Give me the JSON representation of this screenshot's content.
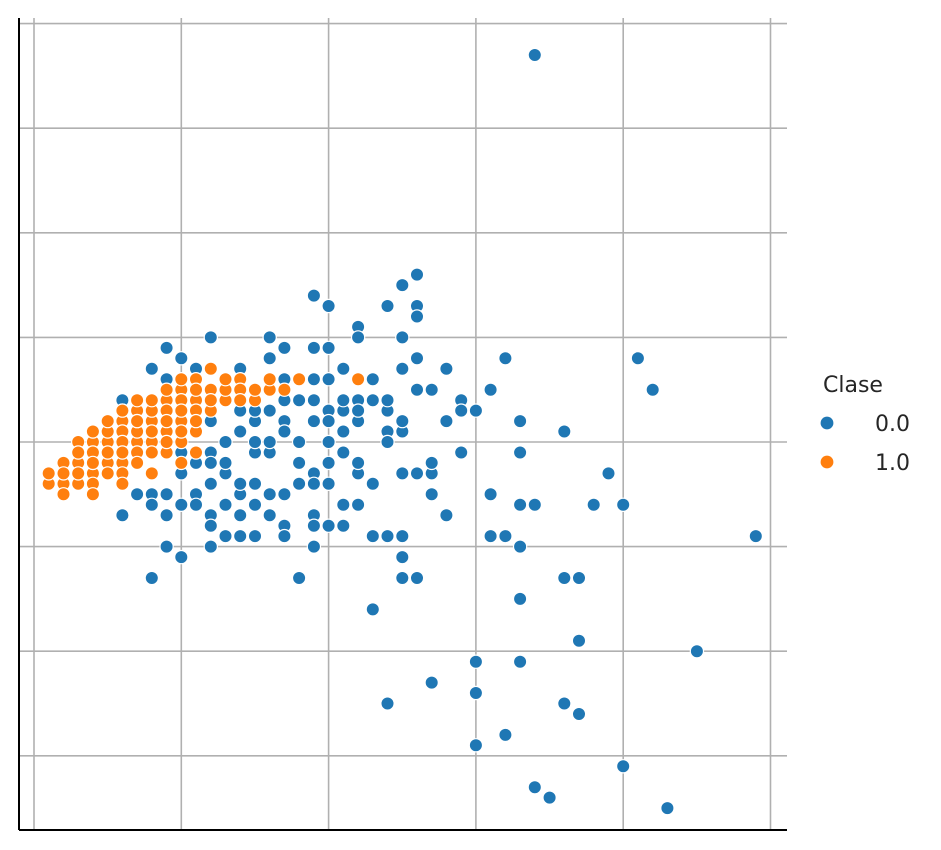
{
  "chart_data": {
    "type": "scatter",
    "title": "",
    "xlabel": "",
    "ylabel": "",
    "xlim": [
      -0.1,
      5.1
    ],
    "ylim": [
      -3.7,
      4.0
    ],
    "grid": true,
    "x_ticks": [
      0,
      1,
      2,
      3,
      4,
      5
    ],
    "y_ticks": [
      -3,
      -2,
      -1,
      0,
      1,
      2,
      3,
      4
    ],
    "legend": {
      "title": "Clase",
      "placement": "right"
    },
    "series": [
      {
        "name": "0.0",
        "color": "#1f77b4",
        "points": [
          [
            3.4,
            3.7
          ],
          [
            2.6,
            1.6
          ],
          [
            2.5,
            1.5
          ],
          [
            1.9,
            1.4
          ],
          [
            3.2,
            0.8
          ],
          [
            4.1,
            0.8
          ],
          [
            3.1,
            0.5
          ],
          [
            2.9,
            0.4
          ],
          [
            4.2,
            0.5
          ],
          [
            1.9,
            -0.3
          ],
          [
            2.4,
            0.1
          ],
          [
            2.8,
            -0.7
          ],
          [
            2.5,
            -1.1
          ],
          [
            2.5,
            -1.3
          ],
          [
            2.3,
            -0.4
          ],
          [
            2.2,
            -0.3
          ],
          [
            2.5,
            -0.9
          ],
          [
            2.6,
            -1.3
          ],
          [
            2.3,
            -1.6
          ],
          [
            2.7,
            -2.3
          ],
          [
            2.4,
            -2.5
          ],
          [
            3.2,
            -0.9
          ],
          [
            3.7,
            -1.9
          ],
          [
            3.5,
            -3.4
          ],
          [
            3.0,
            -2.1
          ],
          [
            4.9,
            -0.9
          ],
          [
            3.8,
            -0.6
          ],
          [
            3.4,
            -0.6
          ],
          [
            3.3,
            -1.0
          ],
          [
            3.3,
            -0.6
          ],
          [
            2.7,
            -0.3
          ],
          [
            2.6,
            -0.3
          ],
          [
            2.7,
            -0.5
          ],
          [
            2.2,
            -0.3
          ],
          [
            2.2,
            -0.6
          ],
          [
            1.8,
            -1.3
          ],
          [
            1.9,
            -0.7
          ],
          [
            2.0,
            -0.8
          ],
          [
            1.9,
            -1.0
          ],
          [
            1.9,
            -0.8
          ],
          [
            2.1,
            -0.6
          ],
          [
            1.6,
            -0.1
          ],
          [
            1.6,
            -0.5
          ],
          [
            1.6,
            -0.7
          ],
          [
            1.5,
            -0.9
          ],
          [
            1.4,
            -0.5
          ],
          [
            1.4,
            -0.7
          ],
          [
            1.5,
            -0.4
          ],
          [
            1.7,
            -0.8
          ],
          [
            1.2,
            -0.4
          ],
          [
            1.2,
            -0.7
          ],
          [
            1.3,
            -0.3
          ],
          [
            1.0,
            -0.3
          ],
          [
            1.0,
            -0.6
          ],
          [
            1.1,
            -0.5
          ],
          [
            0.9,
            -0.7
          ],
          [
            0.9,
            -0.5
          ],
          [
            0.9,
            -1.0
          ],
          [
            0.8,
            -0.5
          ],
          [
            0.8,
            -1.3
          ],
          [
            0.7,
            -0.5
          ],
          [
            0.6,
            -0.7
          ],
          [
            0.5,
            -0.3
          ],
          [
            0.4,
            -0.3
          ],
          [
            0.6,
            -0.2
          ],
          [
            1.0,
            -0.1
          ],
          [
            1.1,
            -0.2
          ],
          [
            1.2,
            -0.1
          ],
          [
            1.3,
            -0.2
          ],
          [
            1.5,
            -0.1
          ],
          [
            1.6,
            0.0
          ],
          [
            1.8,
            0.0
          ],
          [
            2.0,
            0.0
          ],
          [
            2.1,
            -0.1
          ],
          [
            2.2,
            0.2
          ],
          [
            2.4,
            0.3
          ],
          [
            2.5,
            0.1
          ],
          [
            2.6,
            0.5
          ],
          [
            2.8,
            0.7
          ],
          [
            3.0,
            0.3
          ],
          [
            1.9,
            0.4
          ],
          [
            2.0,
            0.3
          ],
          [
            2.1,
            0.3
          ],
          [
            1.4,
            0.4
          ],
          [
            1.5,
            0.2
          ],
          [
            1.2,
            0.2
          ],
          [
            1.3,
            0.6
          ],
          [
            1.0,
            0.4
          ],
          [
            0.9,
            0.6
          ],
          [
            0.8,
            0.3
          ],
          [
            0.7,
            0.1
          ],
          [
            0.6,
            0.4
          ],
          [
            1.7,
            0.4
          ],
          [
            1.7,
            0.2
          ],
          [
            1.8,
            0.4
          ],
          [
            1.9,
            0.6
          ],
          [
            2.0,
            0.6
          ],
          [
            2.2,
            0.4
          ],
          [
            2.3,
            0.4
          ],
          [
            2.4,
            0.4
          ],
          [
            2.1,
            0.1
          ],
          [
            2.0,
            -0.2
          ],
          [
            1.9,
            -0.4
          ],
          [
            1.8,
            -0.4
          ],
          [
            1.7,
            -0.5
          ],
          [
            1.5,
            -0.6
          ],
          [
            1.4,
            -0.9
          ],
          [
            1.2,
            -1.0
          ],
          [
            1.0,
            -1.1
          ],
          [
            1.3,
            -0.6
          ],
          [
            0.8,
            -0.6
          ],
          [
            1.0,
            0.1
          ],
          [
            1.1,
            0.1
          ],
          [
            1.5,
            0.3
          ],
          [
            1.3,
            0.0
          ],
          [
            1.4,
            0.1
          ],
          [
            2.0,
            0.2
          ],
          [
            2.2,
            0.3
          ],
          [
            1.7,
            0.1
          ],
          [
            1.6,
            0.3
          ],
          [
            2.1,
            0.4
          ],
          [
            1.9,
            0.2
          ],
          [
            2.3,
            0.6
          ],
          [
            2.6,
            1.3
          ],
          [
            3.3,
            -0.1
          ],
          [
            3.3,
            0.2
          ],
          [
            3.6,
            0.1
          ],
          [
            3.9,
            -0.3
          ],
          [
            4.0,
            -0.6
          ],
          [
            4.5,
            -2.0
          ],
          [
            4.3,
            -3.5
          ],
          [
            3.7,
            -1.3
          ],
          [
            2.7,
            -0.2
          ],
          [
            2.4,
            -0.9
          ],
          [
            2.1,
            -0.1
          ],
          [
            2.0,
            -0.4
          ],
          [
            2.3,
            -0.9
          ],
          [
            2.1,
            -0.8
          ],
          [
            1.7,
            -0.9
          ],
          [
            1.8,
            -0.2
          ],
          [
            2.2,
            -0.2
          ],
          [
            2.4,
            0.0
          ],
          [
            2.5,
            -0.3
          ],
          [
            2.5,
            0.2
          ],
          [
            2.8,
            0.2
          ],
          [
            2.9,
            -0.1
          ],
          [
            2.9,
            0.3
          ],
          [
            2.7,
            0.5
          ],
          [
            2.6,
            0.8
          ],
          [
            2.5,
            0.7
          ],
          [
            2.6,
            1.2
          ],
          [
            2.4,
            1.3
          ],
          [
            2.2,
            1.1
          ],
          [
            2.0,
            1.3
          ],
          [
            2.0,
            0.9
          ],
          [
            1.7,
            0.9
          ],
          [
            1.6,
            1.0
          ],
          [
            1.6,
            0.6
          ],
          [
            1.5,
            0.5
          ],
          [
            1.5,
            0.0
          ],
          [
            1.4,
            -0.4
          ],
          [
            1.2,
            -0.2
          ],
          [
            1.1,
            -0.6
          ],
          [
            1.2,
            -0.8
          ],
          [
            1.3,
            -0.9
          ],
          [
            1.1,
            0.7
          ],
          [
            1.0,
            0.3
          ],
          [
            0.9,
            0.3
          ],
          [
            1.0,
            0.8
          ],
          [
            1.0,
            0.5
          ],
          [
            1.1,
            0.2
          ],
          [
            1.2,
            0.5
          ],
          [
            1.3,
            0.5
          ],
          [
            1.4,
            0.3
          ],
          [
            1.4,
            0.7
          ],
          [
            1.6,
            0.8
          ],
          [
            1.2,
            1.0
          ],
          [
            0.9,
            0.9
          ],
          [
            0.8,
            0.7
          ],
          [
            0.6,
            0.3
          ],
          [
            1.7,
            0.6
          ],
          [
            1.9,
            0.9
          ],
          [
            2.2,
            1.0
          ],
          [
            2.5,
            1.0
          ],
          [
            2.1,
            0.7
          ],
          [
            3.1,
            -0.5
          ],
          [
            3.1,
            -0.9
          ],
          [
            3.6,
            -1.3
          ],
          [
            3.7,
            -1.3
          ],
          [
            3.3,
            -1.5
          ],
          [
            3.7,
            -2.6
          ],
          [
            3.2,
            -2.8
          ],
          [
            3.4,
            -3.3
          ],
          [
            3.0,
            -2.4
          ],
          [
            3.3,
            -2.1
          ],
          [
            3.6,
            -2.5
          ],
          [
            3.0,
            -2.9
          ],
          [
            4.0,
            -3.1
          ]
        ]
      },
      {
        "name": "1.0",
        "color": "#ff7f0e",
        "points": [
          [
            0.1,
            -0.4
          ],
          [
            0.2,
            -0.4
          ],
          [
            0.3,
            -0.3
          ],
          [
            0.4,
            -0.3
          ],
          [
            0.5,
            -0.2
          ],
          [
            0.6,
            -0.1
          ],
          [
            0.7,
            0.0
          ],
          [
            0.8,
            0.1
          ],
          [
            0.9,
            0.2
          ],
          [
            1.0,
            0.3
          ],
          [
            1.1,
            0.4
          ],
          [
            1.2,
            0.5
          ],
          [
            1.3,
            0.6
          ],
          [
            1.4,
            0.6
          ],
          [
            1.6,
            0.5
          ],
          [
            1.8,
            0.6
          ],
          [
            1.1,
            0.6
          ],
          [
            1.0,
            0.5
          ],
          [
            0.9,
            0.4
          ],
          [
            0.8,
            0.4
          ],
          [
            0.7,
            0.3
          ],
          [
            0.6,
            0.2
          ],
          [
            0.5,
            0.1
          ],
          [
            0.4,
            0.0
          ],
          [
            0.3,
            -0.2
          ],
          [
            0.2,
            -0.2
          ],
          [
            0.3,
            0.0
          ],
          [
            0.4,
            -0.2
          ],
          [
            0.5,
            0.0
          ],
          [
            0.6,
            0.0
          ],
          [
            0.7,
            0.1
          ],
          [
            0.8,
            0.2
          ],
          [
            0.9,
            0.1
          ],
          [
            1.0,
            0.2
          ],
          [
            1.1,
            0.3
          ],
          [
            0.5,
            -0.1
          ],
          [
            0.6,
            -0.2
          ],
          [
            0.7,
            -0.1
          ],
          [
            0.8,
            0.0
          ],
          [
            0.9,
            -0.1
          ],
          [
            1.0,
            0.0
          ],
          [
            0.4,
            -0.1
          ],
          [
            0.3,
            -0.1
          ],
          [
            0.5,
            0.1
          ],
          [
            0.6,
            0.1
          ],
          [
            0.7,
            0.2
          ],
          [
            0.8,
            0.3
          ],
          [
            0.9,
            0.3
          ],
          [
            1.0,
            0.1
          ],
          [
            0.8,
            -0.1
          ],
          [
            0.7,
            -0.2
          ],
          [
            0.6,
            -0.3
          ],
          [
            0.5,
            -0.3
          ],
          [
            0.4,
            -0.4
          ],
          [
            0.2,
            -0.3
          ],
          [
            0.1,
            -0.3
          ],
          [
            0.3,
            -0.4
          ],
          [
            0.6,
            -0.4
          ],
          [
            0.8,
            -0.3
          ],
          [
            1.0,
            -0.2
          ],
          [
            1.1,
            -0.1
          ],
          [
            1.1,
            0.1
          ],
          [
            1.2,
            0.3
          ],
          [
            1.3,
            0.4
          ],
          [
            1.4,
            0.5
          ],
          [
            0.9,
            0.5
          ],
          [
            0.7,
            0.4
          ],
          [
            0.6,
            0.3
          ],
          [
            1.0,
            0.4
          ],
          [
            1.1,
            0.5
          ],
          [
            1.2,
            0.7
          ],
          [
            1.5,
            0.4
          ],
          [
            1.6,
            0.6
          ],
          [
            1.7,
            0.5
          ],
          [
            0.2,
            -0.5
          ],
          [
            0.4,
            -0.2
          ],
          [
            0.6,
            0.0
          ],
          [
            0.9,
            0.0
          ],
          [
            1.1,
            0.2
          ],
          [
            1.3,
            0.5
          ],
          [
            0.7,
            0.2
          ],
          [
            0.8,
            0.1
          ],
          [
            0.5,
            0.2
          ],
          [
            0.4,
            0.1
          ],
          [
            0.3,
            -0.3
          ],
          [
            0.6,
            -0.1
          ],
          [
            0.9,
            0.2
          ],
          [
            1.0,
            0.3
          ],
          [
            0.8,
            0.4
          ],
          [
            1.0,
            0.6
          ],
          [
            1.3,
            0.6
          ],
          [
            1.5,
            0.5
          ],
          [
            1.4,
            0.4
          ],
          [
            1.2,
            0.4
          ],
          [
            2.2,
            0.6
          ],
          [
            0.4,
            -0.5
          ]
        ]
      }
    ]
  }
}
